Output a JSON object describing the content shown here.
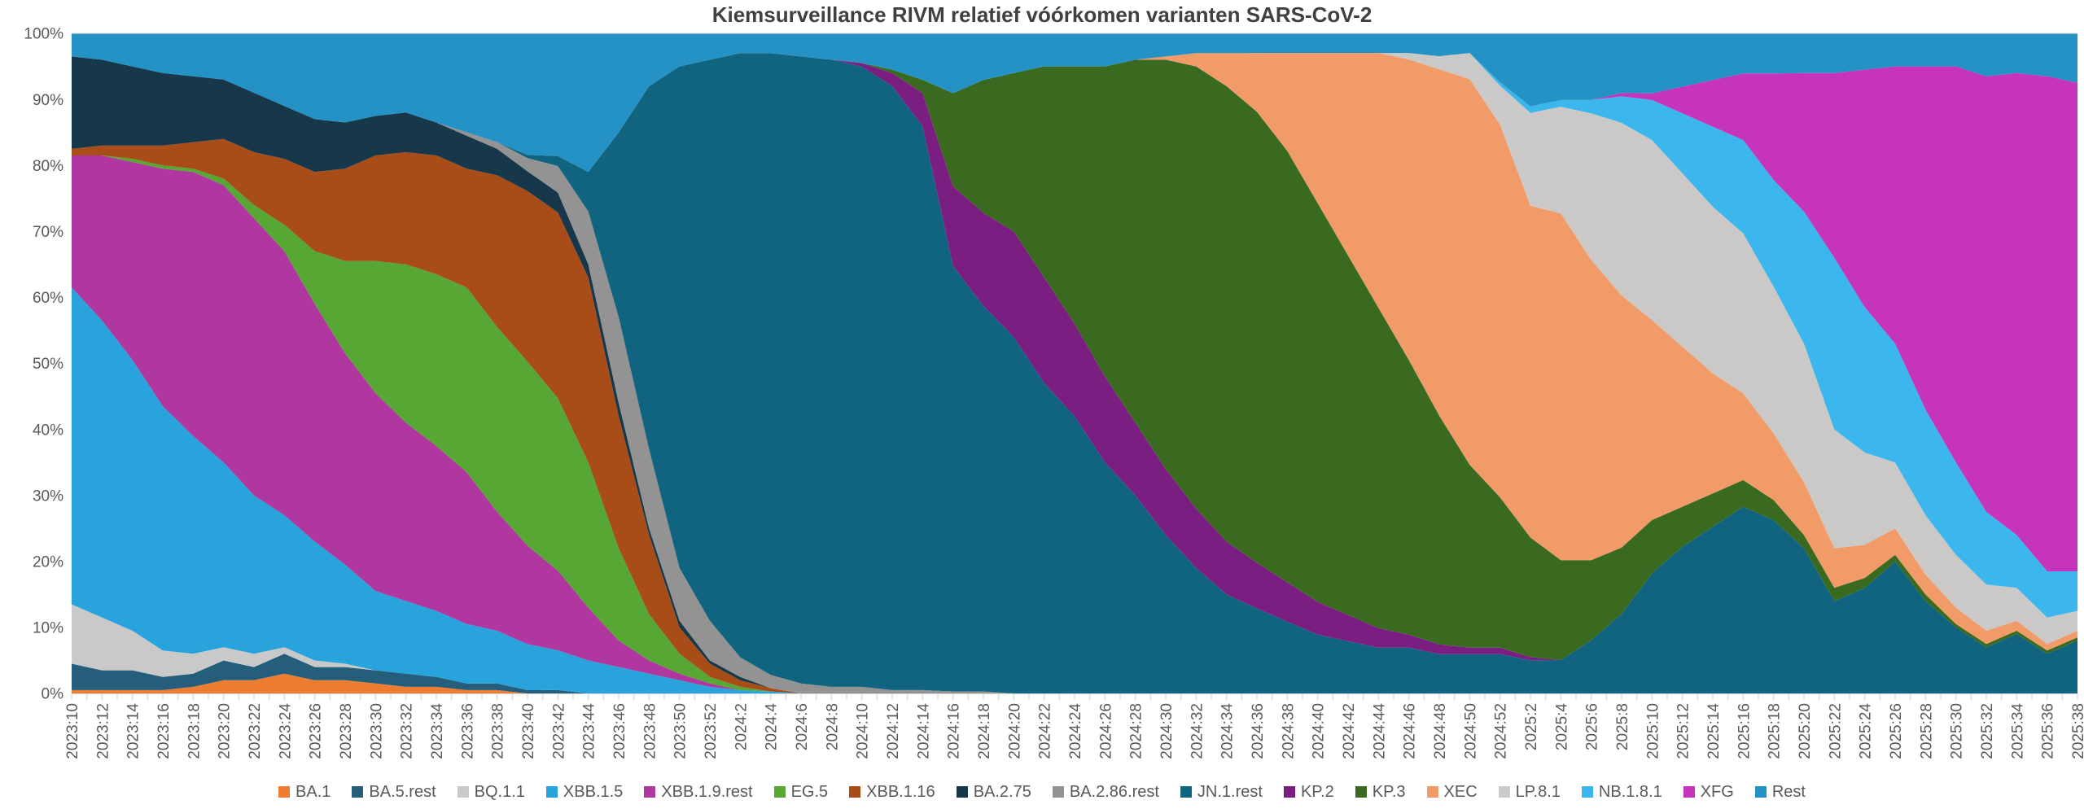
{
  "chart_data": {
    "type": "area",
    "stacked": true,
    "normalized_percent": true,
    "title": "Kiemsurveillance RIVM relatief vóórkomen varianten SARS-CoV-2",
    "xlabel": "",
    "ylabel": "",
    "ylim": [
      0,
      100
    ],
    "grid": false,
    "legend_position": "bottom",
    "y_ticks": [
      {
        "value": 0,
        "label": "0%"
      },
      {
        "value": 10,
        "label": "10%"
      },
      {
        "value": 20,
        "label": "20%"
      },
      {
        "value": 30,
        "label": "30%"
      },
      {
        "value": 40,
        "label": "40%"
      },
      {
        "value": 50,
        "label": "50%"
      },
      {
        "value": 60,
        "label": "60%"
      },
      {
        "value": 70,
        "label": "70%"
      },
      {
        "value": 80,
        "label": "80%"
      },
      {
        "value": 90,
        "label": "90%"
      },
      {
        "value": 100,
        "label": "100%"
      }
    ],
    "x_labels": [
      "2023:10",
      "2023:12",
      "2023:14",
      "2023:16",
      "2023:18",
      "2023:20",
      "2023:22",
      "2023:24",
      "2023:26",
      "2023:28",
      "2023:30",
      "2023:32",
      "2023:34",
      "2023:36",
      "2023:38",
      "2023:40",
      "2023:42",
      "2023:44",
      "2023:46",
      "2023:48",
      "2023:50",
      "2023:52",
      "2024:2",
      "2024:4",
      "2024:6",
      "2024:8",
      "2024:10",
      "2024:12",
      "2024:14",
      "2024:16",
      "2024:18",
      "2024:20",
      "2024:22",
      "2024:24",
      "2024:26",
      "2024:28",
      "2024:30",
      "2024:32",
      "2024:34",
      "2024:36",
      "2024:38",
      "2024:40",
      "2024:42",
      "2024:44",
      "2024:46",
      "2024:48",
      "2024:50",
      "2024:52",
      "2025:2",
      "2025:4",
      "2025:6",
      "2025:8",
      "2025:10",
      "2025:12",
      "2025:14",
      "2025:16",
      "2025:18",
      "2025:20",
      "2025:22",
      "2025:24",
      "2025:26",
      "2025:28",
      "2025:30",
      "2025:32",
      "2025:34",
      "2025:36",
      "2025:38"
    ],
    "series": [
      {
        "name": "BA.1",
        "color": "#ED7D31",
        "values": [
          0.5,
          0.5,
          0.5,
          0.5,
          1,
          2,
          2,
          3,
          2,
          2,
          1.5,
          1,
          1,
          0.5,
          0.5,
          0,
          0,
          0,
          0,
          0,
          0,
          0,
          0,
          0,
          0,
          0,
          0,
          0,
          0,
          0,
          0,
          0,
          0,
          0,
          0,
          0,
          0,
          0,
          0,
          0,
          0,
          0,
          0,
          0,
          0,
          0,
          0,
          0,
          0,
          0,
          0,
          0,
          0,
          0,
          0,
          0,
          0,
          0,
          0,
          0,
          0,
          0,
          0,
          0,
          0,
          0,
          0
        ]
      },
      {
        "name": "BA.5.rest",
        "color": "#255E7A",
        "values": [
          4,
          3,
          3,
          2,
          2,
          3,
          2,
          3,
          2,
          2,
          2,
          2,
          1.5,
          1,
          1,
          0.5,
          0.5,
          0,
          0,
          0,
          0,
          0,
          0,
          0,
          0,
          0,
          0,
          0,
          0,
          0,
          0,
          0,
          0,
          0,
          0,
          0,
          0,
          0,
          0,
          0,
          0,
          0,
          0,
          0,
          0,
          0,
          0,
          0,
          0,
          0,
          0,
          0,
          0,
          0,
          0,
          0,
          0,
          0,
          0,
          0,
          0,
          0,
          0,
          0,
          0,
          0,
          0
        ]
      },
      {
        "name": "BQ.1.1",
        "color": "#C9C9C9",
        "values": [
          9,
          8,
          6,
          4,
          3,
          2,
          2,
          1,
          1,
          0.5,
          0,
          0,
          0,
          0,
          0,
          0,
          0,
          0,
          0,
          0,
          0,
          0,
          0,
          0,
          0,
          0,
          0,
          0,
          0,
          0,
          0,
          0,
          0,
          0,
          0,
          0,
          0,
          0,
          0,
          0,
          0,
          0,
          0,
          0,
          0,
          0,
          0,
          0,
          0,
          0,
          0,
          0,
          0,
          0,
          0,
          0,
          0,
          0,
          0,
          0,
          0,
          0,
          0,
          0,
          0,
          0,
          0
        ]
      },
      {
        "name": "XBB.1.5",
        "color": "#29A3DB",
        "values": [
          48,
          45,
          41,
          37,
          33,
          28,
          24,
          20,
          18,
          15,
          12,
          11,
          10,
          9,
          8,
          7,
          6,
          5,
          4,
          3,
          2,
          1,
          0.5,
          0.3,
          0,
          0,
          0,
          0,
          0,
          0,
          0,
          0,
          0,
          0,
          0,
          0,
          0,
          0,
          0,
          0,
          0,
          0,
          0,
          0,
          0,
          0,
          0,
          0,
          0,
          0,
          0,
          0,
          0,
          0,
          0,
          0,
          0,
          0,
          0,
          0,
          0,
          0,
          0,
          0,
          0,
          0,
          0
        ]
      },
      {
        "name": "XBB.1.9.rest",
        "color": "#B0379F",
        "values": [
          20,
          25,
          30,
          36,
          40,
          42,
          42,
          40,
          36,
          32,
          30,
          27,
          25,
          23,
          18,
          15,
          12,
          8,
          4,
          2,
          1,
          0.5,
          0,
          0,
          0,
          0,
          0,
          0,
          0,
          0,
          0,
          0,
          0,
          0,
          0,
          0,
          0,
          0,
          0,
          0,
          0,
          0,
          0,
          0,
          0,
          0,
          0,
          0,
          0,
          0,
          0,
          0,
          0,
          0,
          0,
          0,
          0,
          0,
          0,
          0,
          0,
          0,
          0,
          0,
          0,
          0,
          0
        ]
      },
      {
        "name": "EG.5",
        "color": "#56A733",
        "values": [
          0,
          0,
          0.5,
          0.5,
          0.5,
          1,
          2,
          4,
          8,
          14,
          20,
          24,
          26,
          28,
          28,
          28,
          26,
          22,
          14,
          7,
          3,
          1,
          0.5,
          0,
          0,
          0,
          0,
          0,
          0,
          0,
          0,
          0,
          0,
          0,
          0,
          0,
          0,
          0,
          0,
          0,
          0,
          0,
          0,
          0,
          0,
          0,
          0,
          0,
          0,
          0,
          0,
          0,
          0,
          0,
          0,
          0,
          0,
          0,
          0,
          0,
          0,
          0,
          0,
          0,
          0,
          0,
          0
        ]
      },
      {
        "name": "XBB.1.16",
        "color": "#A94D18",
        "values": [
          1,
          1.5,
          2,
          3,
          4,
          6,
          8,
          10,
          12,
          14,
          16,
          17,
          18,
          18,
          23,
          26,
          28,
          28,
          20,
          12,
          4,
          2,
          1,
          0.5,
          0,
          0,
          0,
          0,
          0,
          0,
          0,
          0,
          0,
          0,
          0,
          0,
          0,
          0,
          0,
          0,
          0,
          0,
          0,
          0,
          0,
          0,
          0,
          0,
          0,
          0,
          0,
          0,
          0,
          0,
          0,
          0,
          0,
          0,
          0,
          0,
          0,
          0,
          0,
          0,
          0,
          0,
          0
        ]
      },
      {
        "name": "BA.2.75",
        "color": "#17384A",
        "values": [
          14,
          13,
          12,
          11,
          10,
          9,
          9,
          8,
          8,
          7,
          6,
          6,
          5,
          5,
          4,
          3,
          3,
          2,
          2,
          1,
          1,
          0.5,
          0.5,
          0,
          0,
          0,
          0,
          0,
          0,
          0,
          0,
          0,
          0,
          0,
          0,
          0,
          0,
          0,
          0,
          0,
          0,
          0,
          0,
          0,
          0,
          0,
          0,
          0,
          0,
          0,
          0,
          0,
          0,
          0,
          0,
          0,
          0,
          0,
          0,
          0,
          0,
          0,
          0,
          0,
          0,
          0,
          0
        ]
      },
      {
        "name": "BA.2.86.rest",
        "color": "#939393",
        "values": [
          0,
          0,
          0,
          0,
          0,
          0,
          0,
          0,
          0,
          0,
          0,
          0,
          0,
          0.5,
          1,
          2,
          4,
          8,
          13,
          12,
          8,
          6,
          3,
          2,
          1.5,
          1,
          1,
          0.5,
          0.5,
          0.3,
          0.3,
          0,
          0,
          0,
          0,
          0,
          0,
          0,
          0,
          0,
          0,
          0,
          0,
          0,
          0,
          0,
          0,
          0,
          0,
          0,
          0,
          0,
          0,
          0,
          0,
          0,
          0,
          0,
          0,
          0,
          0,
          0,
          0,
          0,
          0,
          0,
          0
        ]
      },
      {
        "name": "JN.1.rest",
        "color": "#11647F",
        "values": [
          0,
          0,
          0,
          0,
          0,
          0,
          0,
          0,
          0,
          0,
          0,
          0,
          0,
          0,
          0,
          0.5,
          1.5,
          6,
          28,
          55,
          76,
          85,
          92,
          94,
          95,
          95,
          94,
          91.5,
          85,
          64,
          58,
          54,
          47,
          42,
          35,
          30,
          24,
          19,
          15,
          13,
          11,
          9,
          8,
          7,
          7,
          6,
          6,
          6,
          5,
          5,
          8,
          12,
          18,
          22,
          25,
          28,
          26,
          22,
          14,
          16,
          20,
          14,
          10,
          7,
          9,
          6,
          8
        ]
      },
      {
        "name": "KP.2",
        "color": "#7A1E82",
        "values": [
          0,
          0,
          0,
          0,
          0,
          0,
          0,
          0,
          0,
          0,
          0,
          0,
          0,
          0,
          0,
          0,
          0,
          0,
          0,
          0,
          0,
          0,
          0,
          0,
          0,
          0,
          0.5,
          2,
          5,
          12,
          14,
          16,
          16,
          14,
          13,
          11,
          10,
          9,
          8,
          7,
          6,
          5,
          4,
          3,
          2,
          1.5,
          1,
          1,
          0.5,
          0,
          0,
          0,
          0,
          0,
          0,
          0,
          0,
          0,
          0,
          0,
          0,
          0,
          0,
          0,
          0,
          0,
          0
        ]
      },
      {
        "name": "KP.3",
        "color": "#3A6A1F",
        "values": [
          0,
          0,
          0,
          0,
          0,
          0,
          0,
          0,
          0,
          0,
          0,
          0,
          0,
          0,
          0,
          0,
          0,
          0,
          0,
          0,
          0,
          0,
          0,
          0,
          0,
          0,
          0,
          0.5,
          2,
          14,
          20,
          24,
          32,
          39,
          47,
          55,
          62,
          67,
          69,
          69,
          66,
          61,
          55,
          49,
          42,
          35,
          28,
          23,
          18,
          15,
          12,
          10,
          8,
          6,
          5,
          4,
          3,
          2,
          2,
          1.5,
          1,
          1,
          0.5,
          0.5,
          0.5,
          0.5,
          0.5
        ]
      },
      {
        "name": "XEC",
        "color": "#F09B68",
        "values": [
          0,
          0,
          0,
          0,
          0,
          0,
          0,
          0,
          0,
          0,
          0,
          0,
          0,
          0,
          0,
          0,
          0,
          0,
          0,
          0,
          0,
          0,
          0,
          0,
          0,
          0,
          0,
          0,
          0,
          0,
          0,
          0,
          0,
          0,
          0,
          0,
          0.5,
          2,
          5,
          9,
          15,
          23,
          31,
          39,
          46,
          53,
          59,
          57,
          50,
          52,
          45,
          38,
          30,
          24,
          18,
          13,
          10,
          8,
          6,
          5,
          4,
          3,
          2.5,
          2,
          1.5,
          1,
          1
        ]
      },
      {
        "name": "LP.8.1",
        "color": "#CBC8C8",
        "values": [
          0,
          0,
          0,
          0,
          0,
          0,
          0,
          0,
          0,
          0,
          0,
          0,
          0,
          0,
          0,
          0,
          0,
          0,
          0,
          0,
          0,
          0,
          0,
          0,
          0,
          0,
          0,
          0,
          0,
          0,
          0,
          0,
          0,
          0,
          0,
          0,
          0,
          0,
          0,
          0,
          0,
          0,
          0,
          0,
          1,
          2,
          4,
          6,
          14,
          16,
          22,
          26,
          27,
          26,
          25,
          24,
          22,
          21,
          18,
          14,
          10,
          9,
          8,
          7,
          5,
          4,
          3
        ]
      },
      {
        "name": "NB.1.8.1",
        "color": "#3CB7EE",
        "values": [
          0,
          0,
          0,
          0,
          0,
          0,
          0,
          0,
          0,
          0,
          0,
          0,
          0,
          0,
          0,
          0,
          0,
          0,
          0,
          0,
          0,
          0,
          0,
          0,
          0,
          0,
          0,
          0,
          0,
          0,
          0,
          0,
          0,
          0,
          0,
          0,
          0,
          0,
          0,
          0,
          0,
          0,
          0,
          0,
          0,
          0,
          0,
          0.5,
          1,
          1,
          2,
          4,
          6,
          9,
          12,
          14,
          16,
          20,
          26,
          22,
          18,
          16,
          14,
          11,
          8,
          7,
          6
        ]
      },
      {
        "name": "XFG",
        "color": "#C634BB",
        "values": [
          0,
          0,
          0,
          0,
          0,
          0,
          0,
          0,
          0,
          0,
          0,
          0,
          0,
          0,
          0,
          0,
          0,
          0,
          0,
          0,
          0,
          0,
          0,
          0,
          0,
          0,
          0,
          0,
          0,
          0,
          0,
          0,
          0,
          0,
          0,
          0,
          0,
          0,
          0,
          0,
          0,
          0,
          0,
          0,
          0,
          0,
          0,
          0,
          0,
          0,
          0,
          0.5,
          1,
          4,
          7,
          10,
          16,
          21,
          28,
          36,
          42,
          52,
          60,
          66,
          70,
          75,
          74
        ]
      },
      {
        "name": "Rest",
        "color": "#2492C4",
        "values": [
          3.5,
          4,
          5,
          6,
          6.5,
          7,
          9,
          11,
          13,
          13.5,
          12.5,
          12,
          13.5,
          15,
          16.5,
          18.5,
          18.5,
          21,
          15,
          8,
          5,
          4,
          3,
          3,
          3.5,
          4,
          4.5,
          5.5,
          7,
          9,
          7,
          6,
          5,
          5,
          5,
          4,
          3.5,
          3,
          3,
          3,
          3,
          3,
          3,
          3,
          3,
          3.5,
          3,
          7.5,
          11,
          10,
          10,
          9,
          9,
          8,
          7,
          6,
          6,
          6,
          6,
          5.5,
          5,
          5,
          5,
          6.5,
          6,
          6.5,
          7.5
        ]
      }
    ]
  }
}
